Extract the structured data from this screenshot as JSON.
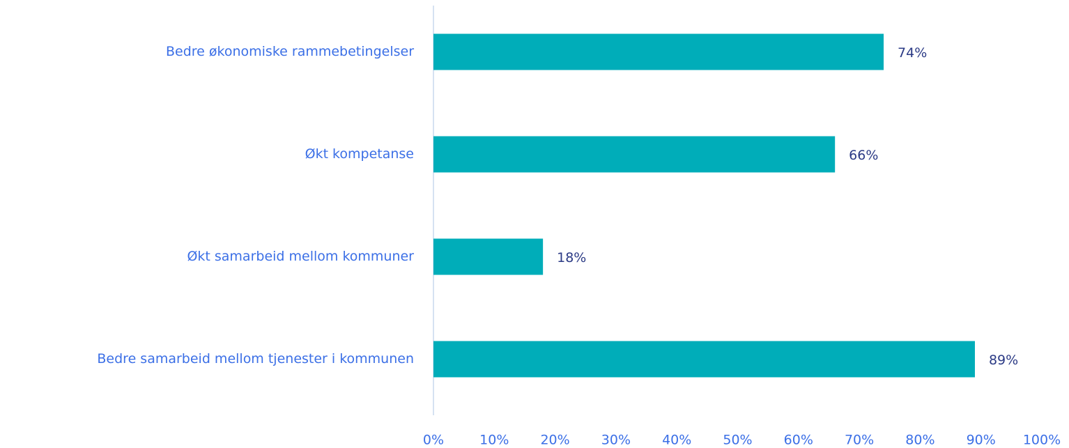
{
  "chart_data": {
    "type": "bar",
    "orientation": "horizontal",
    "categories": [
      "Bedre økonomiske rammebetingelser",
      "Økt kompetanse",
      "Økt samarbeid mellom kommuner",
      "Bedre samarbeid mellom tjenester i kommunen"
    ],
    "values": [
      74,
      66,
      18,
      89
    ],
    "value_labels": [
      "74%",
      "66%",
      "18%",
      "89%"
    ],
    "color": "#00adb9",
    "xlim": [
      0,
      100
    ],
    "xticks": [
      {
        "value": 0,
        "label": "0%"
      },
      {
        "value": 10,
        "label": "10%"
      },
      {
        "value": 20,
        "label": "20%"
      },
      {
        "value": 30,
        "label": "30%"
      },
      {
        "value": 40,
        "label": "40%"
      },
      {
        "value": 50,
        "label": "50%"
      },
      {
        "value": 60,
        "label": "60%"
      },
      {
        "value": 70,
        "label": "70%"
      },
      {
        "value": 80,
        "label": "80%"
      },
      {
        "value": 90,
        "label": "90%"
      },
      {
        "value": 100,
        "label": "100%"
      }
    ],
    "grid": false
  }
}
